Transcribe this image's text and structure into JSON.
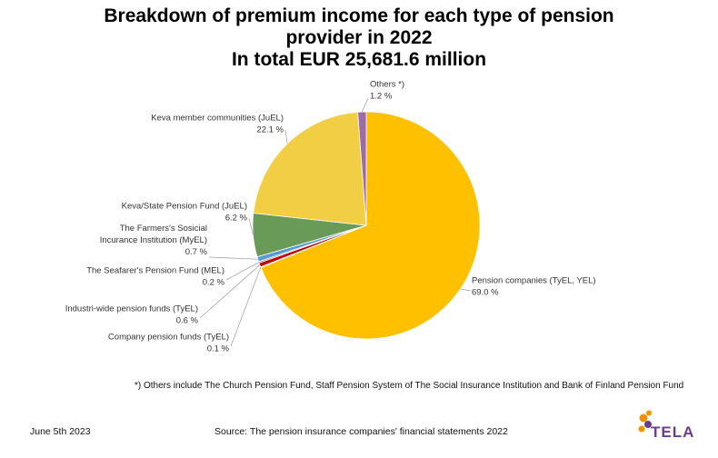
{
  "title_lines": [
    "Breakdown of premium income for each type of pension",
    "provider in 2022",
    "In total EUR 25,681.6 million"
  ],
  "chart_data": {
    "type": "pie",
    "title": "Breakdown of premium income for each type of pension provider in 2022",
    "subtitle": "In total EUR 25,681.6 million",
    "slices": [
      {
        "label": [
          "Pension companies (TyEL, YEL)"
        ],
        "value_label": "69.0 %",
        "value": 69.0,
        "color": "#FFC000"
      },
      {
        "label": [
          "Company pension funds (TyEL)"
        ],
        "value_label": "0.1 %",
        "value": 0.1,
        "color": "#4472C4"
      },
      {
        "label": [
          "Industri-wide pension funds (TyEL)"
        ],
        "value_label": "0.6 %",
        "value": 0.6,
        "color": "#C00000"
      },
      {
        "label": [
          "The Seafarer's Pension Fund (MEL)"
        ],
        "value_label": "0.2 %",
        "value": 0.2,
        "color": "#7F7F7F"
      },
      {
        "label": [
          "The Farmers's Sosicial",
          "Incurance Institution (MyEL)"
        ],
        "value_label": "0.7 %",
        "value": 0.7,
        "color": "#5B9BD5"
      },
      {
        "label": [
          "Keva/State Pension Fund (JuEL)"
        ],
        "value_label": "6.2 %",
        "value": 6.2,
        "color": "#6A9A58"
      },
      {
        "label": [
          "Keva member communities (JuEL)"
        ],
        "value_label": "22.1 %",
        "value": 22.1,
        "color": "#F2CE45"
      },
      {
        "label": [
          "Others *)"
        ],
        "value_label": "1.2 %",
        "value": 1.2,
        "color": "#9E6BA8"
      }
    ]
  },
  "footer": {
    "note": "*) Others include The Church Pension Fund, Staff Pension System of The Social Insurance Institution and Bank of Finland Pension Fund",
    "date": "June 5th 2023",
    "source": "Source: The pension insurance companies' financial statements 2022",
    "logo_text": "TELA"
  },
  "colors": {
    "logo_orange": "#F39200",
    "logo_purple": "#6A3D8F"
  }
}
